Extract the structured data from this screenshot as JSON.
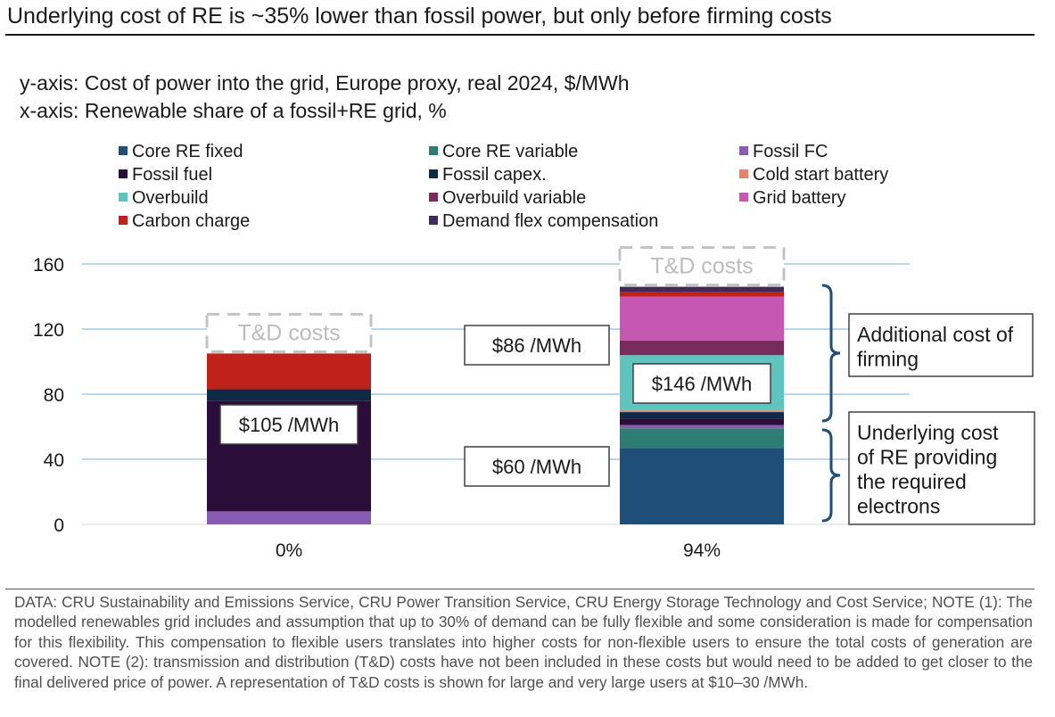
{
  "title": "Underlying cost of RE is ~35% lower than fossil power, but only before firming costs",
  "y_axis_desc": "y-axis: Cost of power into the grid, Europe proxy, real 2024, $/MWh",
  "x_axis_desc": "x-axis: Renewable share of a fossil+RE grid, %",
  "chart_data": {
    "type": "bar",
    "stacked": true,
    "categories": [
      "0%",
      "94%"
    ],
    "ylim": [
      0,
      160
    ],
    "yticks": [
      "0",
      "40",
      "80",
      "120",
      "160"
    ],
    "grid": true,
    "legend_position": "top",
    "series": [
      {
        "name": "Core RE fixed",
        "color": "#1f4e79",
        "values": [
          0,
          47
        ]
      },
      {
        "name": "Core RE variable",
        "color": "#2e7d74",
        "values": [
          0,
          12
        ]
      },
      {
        "name": "Fossil FC",
        "color": "#8a5bb5",
        "values": [
          8,
          2
        ]
      },
      {
        "name": "Fossil fuel",
        "color": "#2b0d3a",
        "values": [
          68,
          4
        ]
      },
      {
        "name": "Fossil capex.",
        "color": "#0f2a45",
        "values": [
          7,
          4
        ]
      },
      {
        "name": "Cold start battery",
        "color": "#ec7e6a",
        "values": [
          0,
          1
        ]
      },
      {
        "name": "Overbuild",
        "color": "#5ec4bd",
        "values": [
          0,
          34
        ]
      },
      {
        "name": "Overbuild variable",
        "color": "#7b2a5e",
        "values": [
          0,
          9
        ]
      },
      {
        "name": "Grid battery",
        "color": "#c658b3",
        "values": [
          0,
          27
        ]
      },
      {
        "name": "Carbon charge",
        "color": "#c0221b",
        "values": [
          22,
          3
        ]
      },
      {
        "name": "Demand flex compensation",
        "color": "#3d2a5e",
        "values": [
          0,
          3
        ]
      }
    ],
    "legend_columns": [
      [
        "Core RE fixed",
        "Fossil fuel",
        "Overbuild",
        "Carbon charge"
      ],
      [
        "Core RE variable",
        "Fossil capex.",
        "Overbuild variable",
        "Demand flex compensation"
      ],
      [
        "Fossil FC",
        "Cold start battery",
        "Grid battery"
      ]
    ],
    "annotations": {
      "td_label": "T&D costs",
      "bar_totals": [
        "$105 /MWh",
        "$146 /MWh"
      ],
      "re_underlying": "$60 /MWh",
      "firming_cost": "$86 /MWh",
      "additional_label": [
        "Additional cost of",
        "firming"
      ],
      "underlying_label": [
        "Underlying cost",
        "of RE providing",
        "the required",
        "electrons"
      ]
    }
  },
  "footnote": "DATA: CRU Sustainability and Emissions Service, CRU Power Transition Service, CRU  Energy Storage Technology and Cost Service; NOTE (1): The modelled renewables grid includes and assumption that up to 30% of demand can be fully flexible and some consideration is made for compensation for this flexibility. This compensation to flexible users translates into higher costs for non-flexible users to ensure the total costs of generation are covered. NOTE (2): transmission and distribution (T&D) costs have not been included in these costs but would need to be added to get closer to the final delivered price of power. A representation of T&D costs is shown for large and very large users at $10–30 /MWh."
}
